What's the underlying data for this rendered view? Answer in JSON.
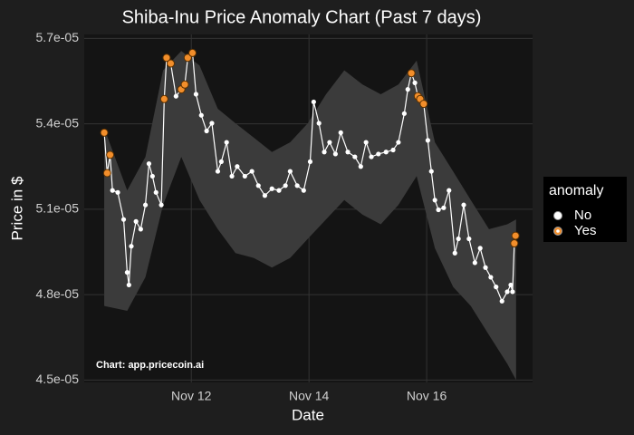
{
  "chart_data": {
    "type": "line",
    "title": "Shiba-Inu Price Anomaly Chart (Past 7 days)",
    "x_label": "Date",
    "y_label": "Price in $",
    "caption": "Chart: app.pricecoin.ai",
    "x": [
      10.52,
      10.57,
      10.62,
      10.66,
      10.75,
      10.85,
      10.91,
      10.94,
      10.98,
      11.06,
      11.14,
      11.22,
      11.28,
      11.34,
      11.4,
      11.49,
      11.54,
      11.58,
      11.65,
      11.74,
      11.83,
      11.89,
      11.94,
      12.02,
      12.08,
      12.17,
      12.26,
      12.35,
      12.45,
      12.51,
      12.6,
      12.69,
      12.78,
      12.91,
      13.03,
      13.14,
      13.25,
      13.37,
      13.49,
      13.6,
      13.68,
      13.8,
      13.91,
      14.02,
      14.08,
      14.17,
      14.26,
      14.35,
      14.45,
      14.54,
      14.66,
      14.78,
      14.88,
      14.97,
      15.06,
      15.18,
      15.31,
      15.43,
      15.52,
      15.62,
      15.68,
      15.74,
      15.8,
      15.85,
      15.89,
      15.95,
      16.02,
      16.08,
      16.14,
      16.2,
      16.29,
      16.38,
      16.48,
      16.54,
      16.63,
      16.72,
      16.82,
      16.91,
      17.0,
      17.09,
      17.18,
      17.28,
      17.37,
      17.43,
      17.46,
      17.49,
      17.51
    ],
    "values": [
      5.369e-05,
      5.227e-05,
      5.291e-05,
      5.166e-05,
      5.159e-05,
      5.064e-05,
      4.878e-05,
      4.834e-05,
      4.97e-05,
      5.057e-05,
      5.03e-05,
      5.115e-05,
      5.26e-05,
      5.216e-05,
      5.159e-05,
      5.115e-05,
      5.487e-05,
      5.632e-05,
      5.612e-05,
      5.497e-05,
      5.521e-05,
      5.538e-05,
      5.632e-05,
      5.649e-05,
      5.504e-05,
      5.43e-05,
      5.375e-05,
      5.402e-05,
      5.233e-05,
      5.267e-05,
      5.335e-05,
      5.216e-05,
      5.25e-05,
      5.216e-05,
      5.233e-05,
      5.183e-05,
      5.148e-05,
      5.172e-05,
      5.166e-05,
      5.183e-05,
      5.233e-05,
      5.183e-05,
      5.166e-05,
      5.267e-05,
      5.477e-05,
      5.402e-05,
      5.301e-05,
      5.335e-05,
      5.294e-05,
      5.369e-05,
      5.301e-05,
      5.284e-05,
      5.25e-05,
      5.335e-05,
      5.284e-05,
      5.294e-05,
      5.301e-05,
      5.308e-05,
      5.335e-05,
      5.436e-05,
      5.521e-05,
      5.578e-05,
      5.544e-05,
      5.497e-05,
      5.487e-05,
      5.47e-05,
      5.342e-05,
      5.233e-05,
      5.132e-05,
      5.098e-05,
      5.105e-05,
      5.166e-05,
      4.946e-05,
      4.996e-05,
      5.115e-05,
      4.996e-05,
      4.912e-05,
      4.963e-05,
      4.895e-05,
      4.861e-05,
      4.827e-05,
      4.777e-05,
      4.81e-05,
      4.834e-05,
      4.81e-05,
      4.98e-05,
      5.007e-05
    ],
    "anomaly": [
      true,
      true,
      true,
      false,
      false,
      false,
      false,
      false,
      false,
      false,
      false,
      false,
      false,
      false,
      false,
      false,
      true,
      true,
      true,
      false,
      true,
      true,
      true,
      true,
      false,
      false,
      false,
      false,
      false,
      false,
      false,
      false,
      false,
      false,
      false,
      false,
      false,
      false,
      false,
      false,
      false,
      false,
      false,
      false,
      false,
      false,
      false,
      false,
      false,
      false,
      false,
      false,
      false,
      false,
      false,
      false,
      false,
      false,
      false,
      false,
      false,
      true,
      false,
      true,
      true,
      true,
      false,
      false,
      false,
      false,
      false,
      false,
      false,
      false,
      false,
      false,
      false,
      false,
      false,
      false,
      false,
      false,
      false,
      false,
      false,
      true,
      true
    ],
    "band": {
      "x": [
        10.52,
        10.91,
        11.22,
        11.52,
        11.83,
        12.14,
        12.45,
        12.75,
        13.06,
        13.37,
        13.68,
        13.98,
        14.29,
        14.6,
        14.91,
        15.22,
        15.52,
        15.83,
        16.14,
        16.45,
        16.75,
        17.06,
        17.37,
        17.52
      ],
      "upper": [
        5.385e-05,
        5.166e-05,
        5.284e-05,
        5.588e-05,
        5.656e-05,
        5.605e-05,
        5.453e-05,
        5.402e-05,
        5.352e-05,
        5.301e-05,
        5.335e-05,
        5.402e-05,
        5.504e-05,
        5.588e-05,
        5.538e-05,
        5.504e-05,
        5.538e-05,
        5.622e-05,
        5.335e-05,
        5.233e-05,
        5.132e-05,
        5.03e-05,
        5.047e-05,
        5.064e-05
      ],
      "lower": [
        4.76e-05,
        4.743e-05,
        4.861e-05,
        5.115e-05,
        5.284e-05,
        5.132e-05,
        5.03e-05,
        4.946e-05,
        4.929e-05,
        4.895e-05,
        4.929e-05,
        4.996e-05,
        5.064e-05,
        5.132e-05,
        5.081e-05,
        5.047e-05,
        5.115e-05,
        5.216e-05,
        4.963e-05,
        4.827e-05,
        4.76e-05,
        4.658e-05,
        4.557e-05,
        4.5e-05
      ],
      "color": "#3b3b3b"
    },
    "line_color": "#ffffff",
    "legend": {
      "title": "anomaly",
      "entries": [
        {
          "name": "No",
          "color": "#ffffff"
        },
        {
          "name": "Yes",
          "color": "#f28e2b"
        }
      ]
    },
    "xlim": [
      10.18,
      17.8
    ],
    "ylim": [
      4.4915e-05,
      5.714e-05
    ],
    "xticks": [
      {
        "value": 12,
        "label": "Nov 12"
      },
      {
        "value": 14,
        "label": "Nov 14"
      },
      {
        "value": 16,
        "label": "Nov 16"
      }
    ],
    "yticks": [
      {
        "value": 4.5e-05,
        "label": "4.5e-05"
      },
      {
        "value": 4.8e-05,
        "label": "4.8e-05"
      },
      {
        "value": 5.1e-05,
        "label": "5.1e-05"
      },
      {
        "value": 5.4e-05,
        "label": "5.4e-05"
      },
      {
        "value": 5.7e-05,
        "label": "5.7e-05"
      }
    ],
    "grid": true
  }
}
